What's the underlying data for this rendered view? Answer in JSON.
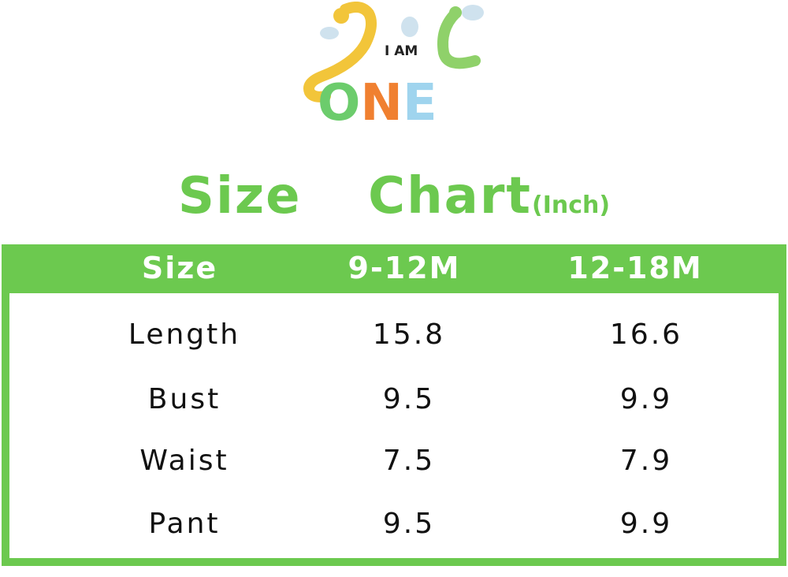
{
  "logo": {
    "text_top": "I AM",
    "text_big": "ONE"
  },
  "title": {
    "main": "Size  Chart",
    "unit": "(Inch)"
  },
  "colors": {
    "accent": "#6cc94f",
    "text": "#111111"
  },
  "table": {
    "headers": [
      "Size",
      "9-12M",
      "12-18M"
    ],
    "rows": [
      [
        "Length",
        "15.8",
        "16.6"
      ],
      [
        "Bust",
        "9.5",
        "9.9"
      ],
      [
        "Waist",
        "7.5",
        "7.9"
      ],
      [
        "Pant",
        "9.5",
        "9.9"
      ]
    ]
  }
}
